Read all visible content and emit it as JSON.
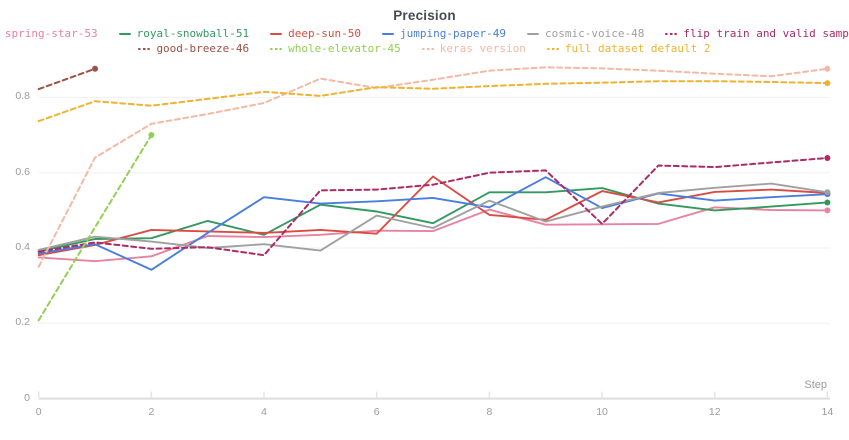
{
  "title": "Precision",
  "axes": {
    "x_label": "Step",
    "x_ticks": [
      0,
      2,
      4,
      6,
      8,
      10,
      12,
      14
    ],
    "y_ticks": [
      0,
      0.2,
      0.4,
      0.6,
      0.8
    ]
  },
  "legend": {
    "rows": [
      [
        0,
        1,
        2,
        3,
        4,
        5
      ],
      [
        6,
        7,
        8,
        9
      ]
    ]
  },
  "chart_data": {
    "type": "line",
    "title": "Precision",
    "xlabel": "Step",
    "xlim": [
      0,
      14
    ],
    "ylim": [
      0,
      1.06
    ],
    "grid": "horizontal",
    "legend_position": "top",
    "x": [
      0,
      1,
      2,
      3,
      4,
      5,
      6,
      7,
      8,
      9,
      10,
      11,
      12,
      13,
      14
    ],
    "series": [
      {
        "name": "spring-star-53",
        "color": "#e8829e",
        "dash": false,
        "values": [
          0.375,
          0.365,
          0.378,
          0.432,
          0.429,
          0.435,
          0.446,
          0.445,
          0.502,
          0.462,
          0.463,
          0.464,
          0.508,
          0.501,
          0.5
        ]
      },
      {
        "name": "royal-snowball-51",
        "color": "#339960",
        "dash": false,
        "values": [
          0.391,
          0.424,
          0.426,
          0.472,
          0.435,
          0.515,
          0.497,
          0.466,
          0.548,
          0.548,
          0.559,
          0.518,
          0.5,
          0.51,
          0.521
        ]
      },
      {
        "name": "deep-sun-50",
        "color": "#da4c41",
        "dash": false,
        "values": [
          0.381,
          0.408,
          0.448,
          0.444,
          0.44,
          0.448,
          0.438,
          0.59,
          0.488,
          0.475,
          0.551,
          0.521,
          0.549,
          0.555,
          0.546
        ]
      },
      {
        "name": "jumping-paper-49",
        "color": "#4a7de0",
        "dash": false,
        "values": [
          0.385,
          0.41,
          0.342,
          0.44,
          0.535,
          0.518,
          0.524,
          0.533,
          0.508,
          0.588,
          0.506,
          0.545,
          0.526,
          0.535,
          0.543
        ]
      },
      {
        "name": "cosmic-voice-48",
        "color": "#a0a0a0",
        "dash": false,
        "values": [
          0.395,
          0.43,
          0.417,
          0.4,
          0.41,
          0.393,
          0.486,
          0.453,
          0.526,
          0.47,
          0.51,
          0.546,
          0.56,
          0.571,
          0.548
        ]
      },
      {
        "name": "flip train and valid sample",
        "color": "#ad2a66",
        "dash": true,
        "values": [
          0.39,
          0.415,
          0.398,
          0.402,
          0.381,
          0.553,
          0.555,
          0.568,
          0.6,
          0.606,
          0.464,
          0.619,
          0.615,
          0.627,
          0.639
        ]
      },
      {
        "name": "good-breeze-46",
        "color": "#9c5144",
        "dash": true,
        "values": [
          0.822,
          0.876
        ]
      },
      {
        "name": "whole-elevator-45",
        "color": "#93cf52",
        "dash": true,
        "values": [
          0.208,
          0.455,
          0.7
        ]
      },
      {
        "name": "keras version",
        "color": "#f4b9a4",
        "dash": true,
        "values": [
          0.35,
          0.64,
          0.73,
          0.756,
          0.785,
          0.85,
          0.825,
          0.847,
          0.871,
          0.88,
          0.877,
          0.871,
          0.863,
          0.856,
          0.876
        ]
      },
      {
        "name": "full dataset default 2",
        "color": "#eeb32f",
        "dash": true,
        "values": [
          0.737,
          0.79,
          0.778,
          0.796,
          0.815,
          0.804,
          0.827,
          0.823,
          0.83,
          0.836,
          0.839,
          0.843,
          0.843,
          0.841,
          0.838
        ]
      }
    ]
  }
}
